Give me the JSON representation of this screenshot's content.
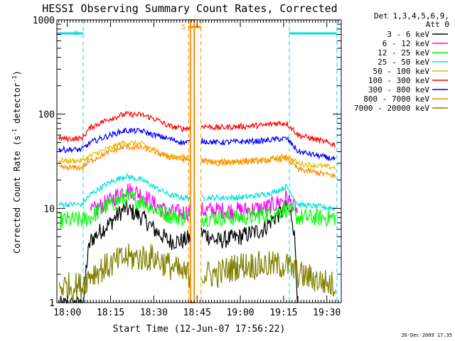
{
  "chart_data": {
    "type": "line",
    "title": "HESSI Observing Summary Count Rates, Corrected",
    "xlabel": "Start Time (12-Jun-07 17:56:22)",
    "ylabel": "Corrected Count Rate (s⁻¹ detector⁻¹)",
    "ylabel_parts": [
      "Corrected Count Rate (s",
      "-1",
      " detector",
      "-1",
      ")"
    ],
    "y_scale": "log",
    "ylim": [
      1,
      1000
    ],
    "xlim": [
      "17:56:22",
      "19:35:00"
    ],
    "x_ticks": [
      "18:00",
      "18:15",
      "18:30",
      "18:45",
      "19:00",
      "19:15",
      "19:30"
    ],
    "y_ticks": [
      "1",
      "10",
      "100",
      "1000"
    ],
    "grid": false,
    "legend_title": [
      "Det 1,3,4,5,6,9,",
      "Att 0"
    ],
    "legend_placement": "right",
    "footer_date": "26-Dec-2009 17:35",
    "flags": [
      {
        "label": "N",
        "start": "17:56:22",
        "end": "18:05:30",
        "color": "#00e0e0"
      },
      {
        "label": "N",
        "start": "19:17:00",
        "end": "19:33:30",
        "color": "#00e0e0"
      },
      {
        "label": "S",
        "start": "18:42:00",
        "end": "18:46:20",
        "color": "#ff8c00"
      }
    ],
    "time_markers": [
      {
        "time": "18:05:30",
        "color": "#00e0e0"
      },
      {
        "time": "19:17:00",
        "color": "#00e0e0"
      },
      {
        "time": "19:33:30",
        "color": "#00e0e0"
      },
      {
        "time": "18:42:00",
        "color": "#ff8c00"
      },
      {
        "time": "18:46:20",
        "color": "#ff8c00"
      }
    ],
    "saa_band": {
      "start": "18:42:40",
      "end": "18:44:00",
      "color": "#ff8c00"
    },
    "series": [
      {
        "name": "3 - 6 keV",
        "color": "#000000",
        "x": [
          "17:57",
          "18:05",
          "18:08",
          "18:15",
          "18:20",
          "18:26",
          "18:30",
          "18:35",
          "18:40",
          "18:47",
          "18:52",
          "19:00",
          "19:08",
          "19:12",
          "19:16",
          "19:18",
          "19:20"
        ],
        "y": [
          0,
          0,
          4.5,
          7,
          10,
          8,
          6,
          4.5,
          4.5,
          5.5,
          4.5,
          5,
          6,
          8,
          10,
          8,
          0
        ]
      },
      {
        "name": "6 - 12 keV",
        "color": "#ff00ff",
        "x": [
          "18:08",
          "18:15",
          "18:20",
          "18:26",
          "18:30",
          "18:35",
          "18:40",
          "18:47",
          "18:52",
          "19:00",
          "19:08",
          "19:12",
          "19:16",
          "19:20"
        ],
        "y": [
          9,
          12,
          16,
          14,
          11,
          9,
          9,
          9.5,
          9.5,
          9.5,
          10,
          11,
          13,
          9
        ]
      },
      {
        "name": "12 - 25 keV",
        "color": "#00ff00",
        "x": [
          "17:57",
          "18:05",
          "18:08",
          "18:15",
          "18:20",
          "18:26",
          "18:30",
          "18:35",
          "18:40",
          "18:47",
          "18:52",
          "19:00",
          "19:08",
          "19:12",
          "19:16",
          "19:20",
          "19:33"
        ],
        "y": [
          7.5,
          7.5,
          8,
          11,
          13,
          12,
          10,
          8.5,
          8,
          8,
          8,
          8,
          8.5,
          9,
          10,
          8,
          8
        ]
      },
      {
        "name": "25 - 50 keV",
        "color": "#00e0e0",
        "x": [
          "17:57",
          "18:05",
          "18:08",
          "18:15",
          "18:20",
          "18:26",
          "18:30",
          "18:35",
          "18:40",
          "18:47",
          "18:52",
          "19:00",
          "19:08",
          "19:12",
          "19:16",
          "19:20",
          "19:33"
        ],
        "y": [
          11,
          11,
          14,
          19,
          22,
          20,
          17,
          14,
          13,
          13,
          13,
          13,
          14,
          15,
          17,
          11,
          10
        ]
      },
      {
        "name": "50 - 100 keV",
        "color": "#e0c000",
        "x": [
          "17:57",
          "18:05",
          "18:08",
          "18:15",
          "18:20",
          "18:26",
          "18:30",
          "18:35",
          "18:40",
          "18:47",
          "18:52",
          "19:00",
          "19:08",
          "19:12",
          "19:16",
          "19:20",
          "19:33"
        ],
        "y": [
          32,
          32,
          36,
          44,
          50,
          48,
          42,
          36,
          35,
          32,
          30,
          31,
          32,
          34,
          36,
          30,
          27
        ]
      },
      {
        "name": "100 - 300 keV",
        "color": "#ff0000",
        "x": [
          "17:57",
          "18:05",
          "18:08",
          "18:15",
          "18:20",
          "18:26",
          "18:30",
          "18:35",
          "18:40",
          "18:47",
          "18:52",
          "19:00",
          "19:08",
          "19:12",
          "19:16",
          "19:20",
          "19:33"
        ],
        "y": [
          55,
          55,
          72,
          90,
          100,
          98,
          90,
          75,
          70,
          75,
          72,
          74,
          76,
          80,
          80,
          60,
          47
        ]
      },
      {
        "name": "300 - 800 keV",
        "color": "#0000ff",
        "x": [
          "17:57",
          "18:05",
          "18:08",
          "18:15",
          "18:20",
          "18:26",
          "18:30",
          "18:35",
          "18:40",
          "18:47",
          "18:52",
          "19:00",
          "19:08",
          "19:12",
          "19:16",
          "19:20",
          "19:33"
        ],
        "y": [
          42,
          42,
          50,
          60,
          67,
          66,
          60,
          55,
          50,
          52,
          50,
          51,
          52,
          54,
          55,
          40,
          33
        ]
      },
      {
        "name": "800 - 7000 keV",
        "color": "#ff8c00",
        "x": [
          "17:57",
          "18:05",
          "18:08",
          "18:15",
          "18:20",
          "18:26",
          "18:30",
          "18:35",
          "18:40",
          "18:47",
          "18:52",
          "19:00",
          "19:08",
          "19:12",
          "19:16",
          "19:20",
          "19:33"
        ],
        "y": [
          27,
          27,
          32,
          40,
          45,
          44,
          40,
          35,
          33,
          32,
          31,
          32,
          32,
          33,
          34,
          26,
          22
        ]
      },
      {
        "name": "7000 - 20000 keV",
        "color": "#808000",
        "x": [
          "17:57",
          "18:05",
          "18:08",
          "18:15",
          "18:20",
          "18:30",
          "18:35",
          "18:40",
          "18:47",
          "18:52",
          "19:00",
          "19:08",
          "19:12",
          "19:16",
          "19:20",
          "19:33"
        ],
        "y": [
          1.5,
          1.5,
          2,
          2.5,
          3,
          3,
          2.5,
          2,
          2,
          2,
          2.5,
          2.5,
          2.5,
          2.5,
          2,
          1.5
        ]
      }
    ]
  }
}
